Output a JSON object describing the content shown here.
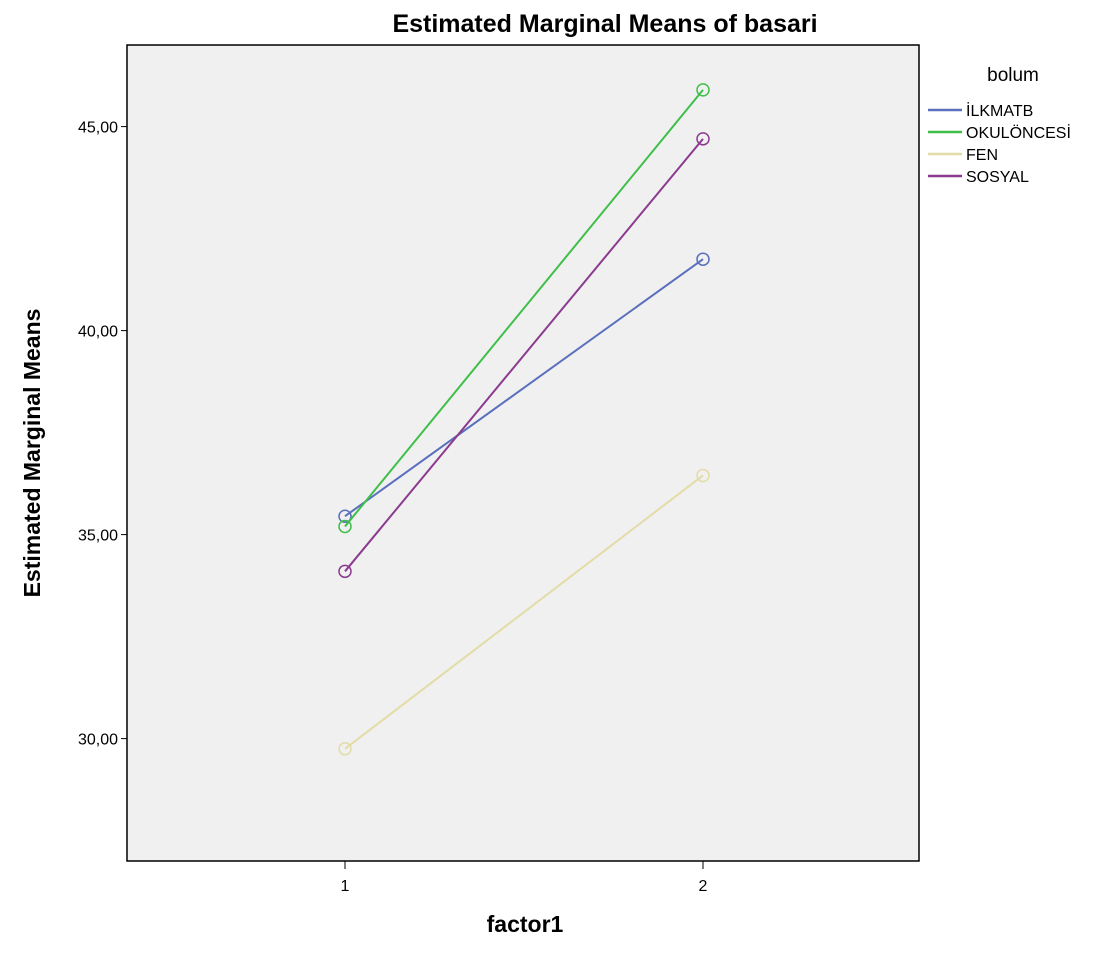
{
  "chart_data": {
    "type": "line",
    "title": "Estimated Marginal Means of basari",
    "xlabel": "factor1",
    "ylabel": "Estimated Marginal Means",
    "categories": [
      "1",
      "2"
    ],
    "ylim": [
      27.0,
      47.0
    ],
    "yticks": [
      30,
      35,
      40,
      45
    ],
    "ytick_labels": [
      "30,00",
      "35,00",
      "40,00",
      "45,00"
    ],
    "grid": false,
    "legend_title": "bolum",
    "legend_position": "right",
    "series": [
      {
        "name": "İLKMATB",
        "color": "#5a6fbd",
        "values": [
          35.45,
          41.75
        ]
      },
      {
        "name": "OKULÖNCESİ",
        "color": "#3fbf4a",
        "values": [
          35.2,
          45.9
        ]
      },
      {
        "name": "FEN",
        "color": "#e2dca6",
        "values": [
          29.75,
          36.45
        ]
      },
      {
        "name": "SOSYAL",
        "color": "#8c3a8f",
        "values": [
          34.1,
          44.7
        ]
      }
    ]
  }
}
